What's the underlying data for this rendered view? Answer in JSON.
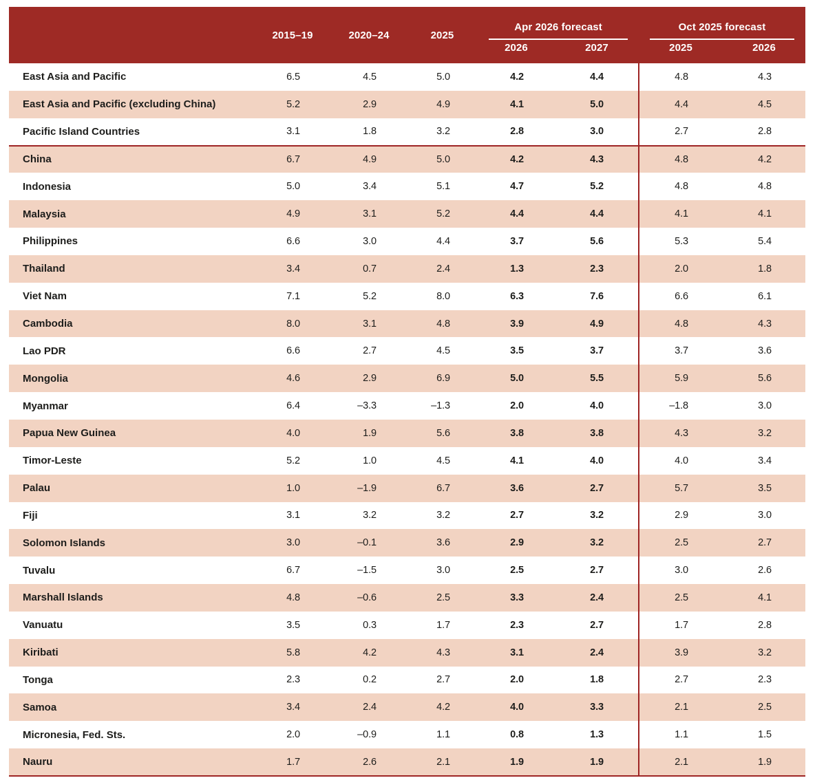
{
  "table": {
    "colors": {
      "header_bg": "#9E2A25",
      "header_text": "#FFFFFF",
      "row_alt_bg": "#F2D3C2",
      "line": "#9E2424",
      "text": "#1D1D1B"
    },
    "header": {
      "period_columns": [
        "2015–19",
        "2020–24",
        "2025"
      ],
      "groups": [
        {
          "title": "Apr 2026 forecast",
          "years": [
            "2026",
            "2027"
          ]
        },
        {
          "title": "Oct 2025 forecast",
          "years": [
            "2025",
            "2026"
          ]
        }
      ]
    },
    "rows": [
      {
        "label": "East Asia and Pacific",
        "values": [
          "6.5",
          "4.5",
          "5.0",
          "4.2",
          "4.4",
          "4.8",
          "4.3"
        ]
      },
      {
        "label": "East Asia and Pacific (excluding China)",
        "values": [
          "5.2",
          "2.9",
          "4.9",
          "4.1",
          "5.0",
          "4.4",
          "4.5"
        ]
      },
      {
        "label": "Pacific Island Countries",
        "values": [
          "3.1",
          "1.8",
          "3.2",
          "2.8",
          "3.0",
          "2.7",
          "2.8"
        ]
      },
      {
        "label": "China",
        "values": [
          "6.7",
          "4.9",
          "5.0",
          "4.2",
          "4.3",
          "4.8",
          "4.2"
        ]
      },
      {
        "label": "Indonesia",
        "values": [
          "5.0",
          "3.4",
          "5.1",
          "4.7",
          "5.2",
          "4.8",
          "4.8"
        ]
      },
      {
        "label": "Malaysia",
        "values": [
          "4.9",
          "3.1",
          "5.2",
          "4.4",
          "4.4",
          "4.1",
          "4.1"
        ]
      },
      {
        "label": "Philippines",
        "values": [
          "6.6",
          "3.0",
          "4.4",
          "3.7",
          "5.6",
          "5.3",
          "5.4"
        ]
      },
      {
        "label": "Thailand",
        "values": [
          "3.4",
          "0.7",
          "2.4",
          "1.3",
          "2.3",
          "2.0",
          "1.8"
        ]
      },
      {
        "label": "Viet Nam",
        "values": [
          "7.1",
          "5.2",
          "8.0",
          "6.3",
          "7.6",
          "6.6",
          "6.1"
        ]
      },
      {
        "label": "Cambodia",
        "values": [
          "8.0",
          "3.1",
          "4.8",
          "3.9",
          "4.9",
          "4.8",
          "4.3"
        ]
      },
      {
        "label": "Lao PDR",
        "values": [
          "6.6",
          "2.7",
          "4.5",
          "3.5",
          "3.7",
          "3.7",
          "3.6"
        ]
      },
      {
        "label": "Mongolia",
        "values": [
          "4.6",
          "2.9",
          "6.9",
          "5.0",
          "5.5",
          "5.9",
          "5.6"
        ]
      },
      {
        "label": "Myanmar",
        "values": [
          "6.4",
          "–3.3",
          "–1.3",
          "2.0",
          "4.0",
          "–1.8",
          "3.0"
        ]
      },
      {
        "label": "Papua New Guinea",
        "values": [
          "4.0",
          "1.9",
          "5.6",
          "3.8",
          "3.8",
          "4.3",
          "3.2"
        ]
      },
      {
        "label": "Timor-Leste",
        "values": [
          "5.2",
          "1.0",
          "4.5",
          "4.1",
          "4.0",
          "4.0",
          "3.4"
        ]
      },
      {
        "label": "Palau",
        "values": [
          "1.0",
          "–1.9",
          "6.7",
          "3.6",
          "2.7",
          "5.7",
          "3.5"
        ]
      },
      {
        "label": "Fiji",
        "values": [
          "3.1",
          "3.2",
          "3.2",
          "2.7",
          "3.2",
          "2.9",
          "3.0"
        ]
      },
      {
        "label": "Solomon Islands",
        "values": [
          "3.0",
          "–0.1",
          "3.6",
          "2.9",
          "3.2",
          "2.5",
          "2.7"
        ]
      },
      {
        "label": "Tuvalu",
        "values": [
          "6.7",
          "–1.5",
          "3.0",
          "2.5",
          "2.7",
          "3.0",
          "2.6"
        ]
      },
      {
        "label": "Marshall Islands",
        "values": [
          "4.8",
          "–0.6",
          "2.5",
          "3.3",
          "2.4",
          "2.5",
          "4.1"
        ]
      },
      {
        "label": "Vanuatu",
        "values": [
          "3.5",
          "0.3",
          "1.7",
          "2.3",
          "2.7",
          "1.7",
          "2.8"
        ]
      },
      {
        "label": "Kiribati",
        "values": [
          "5.8",
          "4.2",
          "4.3",
          "3.1",
          "2.4",
          "3.9",
          "3.2"
        ]
      },
      {
        "label": "Tonga",
        "values": [
          "2.3",
          "0.2",
          "2.7",
          "2.0",
          "1.8",
          "2.7",
          "2.3"
        ]
      },
      {
        "label": "Samoa",
        "values": [
          "3.4",
          "2.4",
          "4.2",
          "4.0",
          "3.3",
          "2.1",
          "2.5"
        ]
      },
      {
        "label": "Micronesia, Fed. Sts.",
        "values": [
          "2.0",
          "–0.9",
          "1.1",
          "0.8",
          "1.3",
          "1.1",
          "1.5"
        ]
      },
      {
        "label": "Nauru",
        "values": [
          "1.7",
          "2.6",
          "2.1",
          "1.9",
          "1.9",
          "2.1",
          "1.9"
        ]
      }
    ]
  },
  "chart_data": {
    "type": "table",
    "columns": [
      "2015–19",
      "2020–24",
      "2025",
      "Apr 2026 forecast: 2026",
      "Apr 2026 forecast: 2027",
      "Oct 2025 forecast: 2025",
      "Oct 2025 forecast: 2026"
    ],
    "rows": [
      {
        "label": "East Asia and Pacific",
        "values": [
          6.5,
          4.5,
          5.0,
          4.2,
          4.4,
          4.8,
          4.3
        ]
      },
      {
        "label": "East Asia and Pacific (excluding China)",
        "values": [
          5.2,
          2.9,
          4.9,
          4.1,
          5.0,
          4.4,
          4.5
        ]
      },
      {
        "label": "Pacific Island Countries",
        "values": [
          3.1,
          1.8,
          3.2,
          2.8,
          3.0,
          2.7,
          2.8
        ]
      },
      {
        "label": "China",
        "values": [
          6.7,
          4.9,
          5.0,
          4.2,
          4.3,
          4.8,
          4.2
        ]
      },
      {
        "label": "Indonesia",
        "values": [
          5.0,
          3.4,
          5.1,
          4.7,
          5.2,
          4.8,
          4.8
        ]
      },
      {
        "label": "Malaysia",
        "values": [
          4.9,
          3.1,
          5.2,
          4.4,
          4.4,
          4.1,
          4.1
        ]
      },
      {
        "label": "Philippines",
        "values": [
          6.6,
          3.0,
          4.4,
          3.7,
          5.6,
          5.3,
          5.4
        ]
      },
      {
        "label": "Thailand",
        "values": [
          3.4,
          0.7,
          2.4,
          1.3,
          2.3,
          2.0,
          1.8
        ]
      },
      {
        "label": "Viet Nam",
        "values": [
          7.1,
          5.2,
          8.0,
          6.3,
          7.6,
          6.6,
          6.1
        ]
      },
      {
        "label": "Cambodia",
        "values": [
          8.0,
          3.1,
          4.8,
          3.9,
          4.9,
          4.8,
          4.3
        ]
      },
      {
        "label": "Lao PDR",
        "values": [
          6.6,
          2.7,
          4.5,
          3.5,
          3.7,
          3.7,
          3.6
        ]
      },
      {
        "label": "Mongolia",
        "values": [
          4.6,
          2.9,
          6.9,
          5.0,
          5.5,
          5.9,
          5.6
        ]
      },
      {
        "label": "Myanmar",
        "values": [
          6.4,
          -3.3,
          -1.3,
          2.0,
          4.0,
          -1.8,
          3.0
        ]
      },
      {
        "label": "Papua New Guinea",
        "values": [
          4.0,
          1.9,
          5.6,
          3.8,
          3.8,
          4.3,
          3.2
        ]
      },
      {
        "label": "Timor-Leste",
        "values": [
          5.2,
          1.0,
          4.5,
          4.1,
          4.0,
          4.0,
          3.4
        ]
      },
      {
        "label": "Palau",
        "values": [
          1.0,
          -1.9,
          6.7,
          3.6,
          2.7,
          5.7,
          3.5
        ]
      },
      {
        "label": "Fiji",
        "values": [
          3.1,
          3.2,
          3.2,
          2.7,
          3.2,
          2.9,
          3.0
        ]
      },
      {
        "label": "Solomon Islands",
        "values": [
          3.0,
          -0.1,
          3.6,
          2.9,
          3.2,
          2.5,
          2.7
        ]
      },
      {
        "label": "Tuvalu",
        "values": [
          6.7,
          -1.5,
          3.0,
          2.5,
          2.7,
          3.0,
          2.6
        ]
      },
      {
        "label": "Marshall Islands",
        "values": [
          4.8,
          -0.6,
          2.5,
          3.3,
          2.4,
          2.5,
          4.1
        ]
      },
      {
        "label": "Vanuatu",
        "values": [
          3.5,
          0.3,
          1.7,
          2.3,
          2.7,
          1.7,
          2.8
        ]
      },
      {
        "label": "Kiribati",
        "values": [
          5.8,
          4.2,
          4.3,
          3.1,
          2.4,
          3.9,
          3.2
        ]
      },
      {
        "label": "Tonga",
        "values": [
          2.3,
          0.2,
          2.7,
          2.0,
          1.8,
          2.7,
          2.3
        ]
      },
      {
        "label": "Samoa",
        "values": [
          3.4,
          2.4,
          4.2,
          4.0,
          3.3,
          2.1,
          2.5
        ]
      },
      {
        "label": "Micronesia, Fed. Sts.",
        "values": [
          2.0,
          -0.9,
          1.1,
          0.8,
          1.3,
          1.1,
          1.5
        ]
      },
      {
        "label": "Nauru",
        "values": [
          1.7,
          2.6,
          2.1,
          1.9,
          1.9,
          2.1,
          1.9
        ]
      }
    ],
    "notes": "Apr 2026 forecast columns are rendered bold; alternating rows shaded; red rule separates regional aggregates from country rows; red vertical rule separates Apr 2026 and Oct 2025 forecast blocks."
  }
}
